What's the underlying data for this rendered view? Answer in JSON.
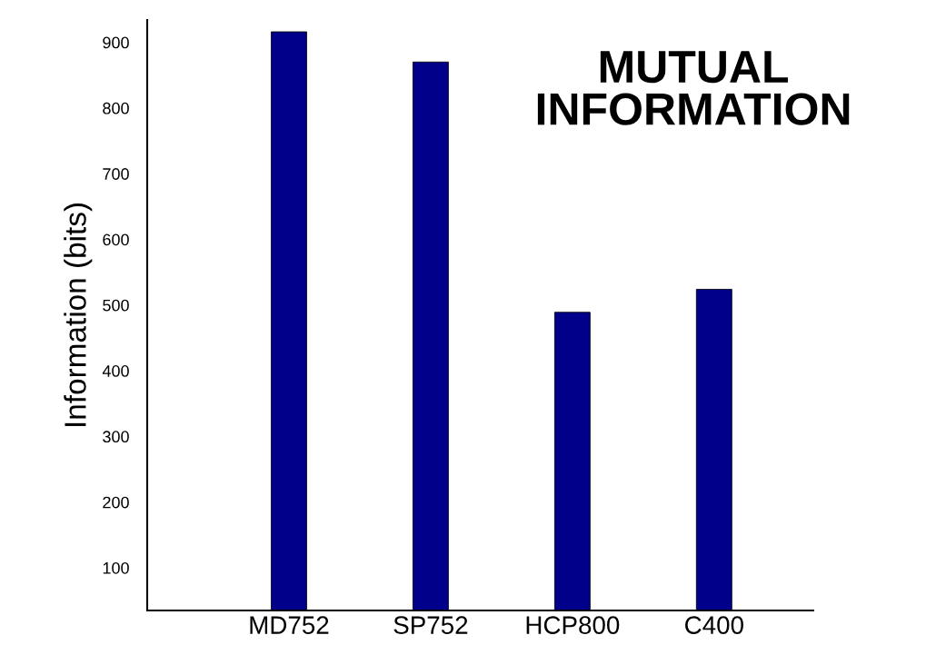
{
  "chart_data": {
    "type": "bar",
    "title": "MUTUAL\nINFORMATION",
    "ylabel": "Information (bits)",
    "categories": [
      "MD752",
      "SP752",
      "HCP800",
      "C400"
    ],
    "values": [
      916,
      870,
      489,
      524
    ],
    "color": "#00008b",
    "ylim": [
      35,
      934
    ],
    "yticks": [
      100,
      200,
      300,
      400,
      500,
      600,
      700,
      800,
      900
    ],
    "grid": false
  }
}
